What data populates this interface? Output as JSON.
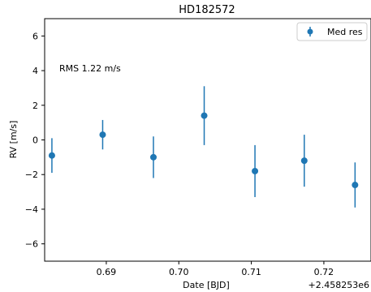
{
  "chart_data": {
    "type": "scatter",
    "title": "HD182572",
    "xlabel": "Date [BJD]",
    "ylabel": "RV [m/s]",
    "x_offset_label": "+2.458253e6",
    "xlim": [
      0.6815,
      0.7265
    ],
    "ylim": [
      -7,
      7
    ],
    "x_ticks": [
      0.69,
      0.7,
      0.71,
      0.72
    ],
    "x_tick_labels": [
      "0.69",
      "0.70",
      "0.71",
      "0.72"
    ],
    "y_ticks": [
      -6,
      -4,
      -2,
      0,
      2,
      4,
      6
    ],
    "y_tick_labels": [
      "−6",
      "−4",
      "−2",
      "0",
      "2",
      "4",
      "6"
    ],
    "annotation": "RMS 1.22 m/s",
    "legend_position": "top-right",
    "series": [
      {
        "name": "Med res",
        "color": "#1f77b4",
        "points": [
          {
            "x": 0.6825,
            "y": -0.9,
            "err": 1.0
          },
          {
            "x": 0.6895,
            "y": 0.3,
            "err": 0.85
          },
          {
            "x": 0.6965,
            "y": -1.0,
            "err": 1.2
          },
          {
            "x": 0.7035,
            "y": 1.4,
            "err": 1.7
          },
          {
            "x": 0.7105,
            "y": -1.8,
            "err": 1.5
          },
          {
            "x": 0.7173,
            "y": -1.2,
            "err": 1.5
          },
          {
            "x": 0.7243,
            "y": -2.6,
            "err": 1.3
          }
        ]
      }
    ]
  }
}
